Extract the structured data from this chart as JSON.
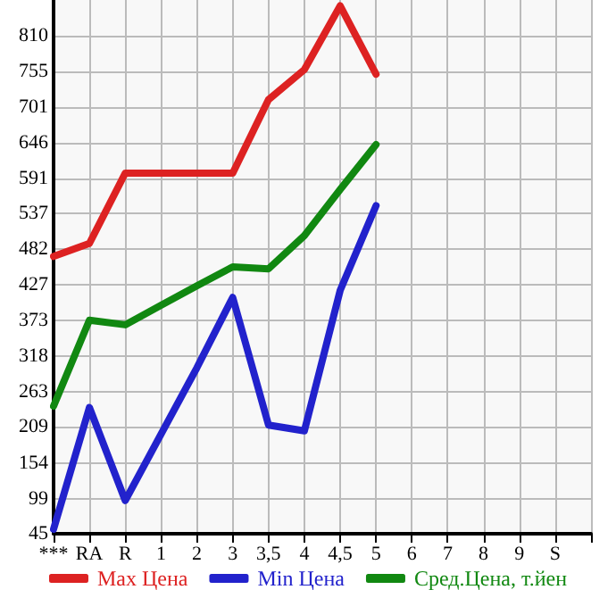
{
  "chart_data": {
    "type": "line",
    "categories": [
      "***",
      "RA",
      "R",
      "1",
      "2",
      "3",
      "3,5",
      "4",
      "4,5",
      "5",
      "6",
      "7",
      "8",
      "9",
      "S",
      null
    ],
    "series": [
      {
        "name": "Max Цена",
        "color": "#dd2222",
        "values": [
          471,
          491,
          599,
          599,
          599,
          599,
          712,
          758,
          856,
          751,
          null,
          null,
          null,
          null,
          null,
          null
        ]
      },
      {
        "name": "Min Цена",
        "color": "#2222cc",
        "values": [
          52,
          239,
          96,
          198,
          300,
          408,
          212,
          203,
          419,
          549,
          null,
          null,
          null,
          null,
          null,
          null
        ]
      },
      {
        "name": "Сред.Цена, т.йен",
        "color": "#118811",
        "values": [
          241,
          373,
          366,
          396,
          426,
          455,
          452,
          503,
          574,
          643,
          null,
          null,
          null,
          null,
          null,
          null
        ]
      }
    ],
    "ylim": [
      45,
      865
    ],
    "yticks": [
      45,
      99,
      154,
      209,
      263,
      318,
      373,
      427,
      482,
      537,
      591,
      646,
      701,
      755,
      810
    ],
    "grid": true,
    "legend": "bottom",
    "marker": "none",
    "line_style": "solid"
  }
}
